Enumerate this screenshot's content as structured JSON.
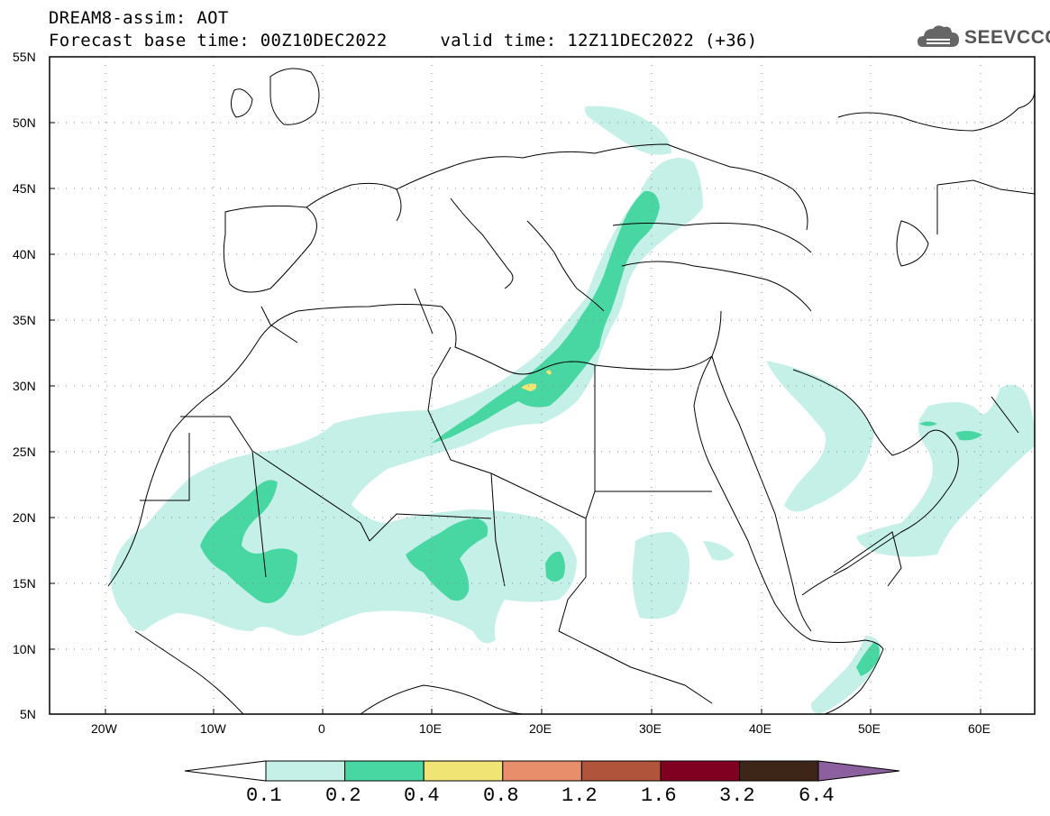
{
  "title": {
    "line1": "DREAM8-assim: AOT",
    "line2": "Forecast base time: 00Z10DEC2022     valid time: 12Z11DEC2022 (+36)"
  },
  "logo": {
    "text": "SEEVCCC",
    "icon": "cloud-icon"
  },
  "map": {
    "lat_labels": [
      "55N",
      "50N",
      "45N",
      "40N",
      "35N",
      "30N",
      "25N",
      "20N",
      "15N",
      "10N",
      "5N"
    ],
    "lon_labels": [
      "20W",
      "10W",
      "0",
      "10E",
      "20E",
      "30E",
      "40E",
      "50E",
      "60E"
    ]
  },
  "legend": {
    "levels": [
      "0.1",
      "0.2",
      "0.4",
      "0.8",
      "1.2",
      "1.6",
      "3.2",
      "6.4"
    ],
    "colors": [
      "#c5f0e8",
      "#48d7a3",
      "#f0e474",
      "#e98e6a",
      "#b1543c",
      "#800022",
      "#3d2617",
      "#8c5f9f"
    ],
    "left_arrow_color": "#ffffff"
  }
}
